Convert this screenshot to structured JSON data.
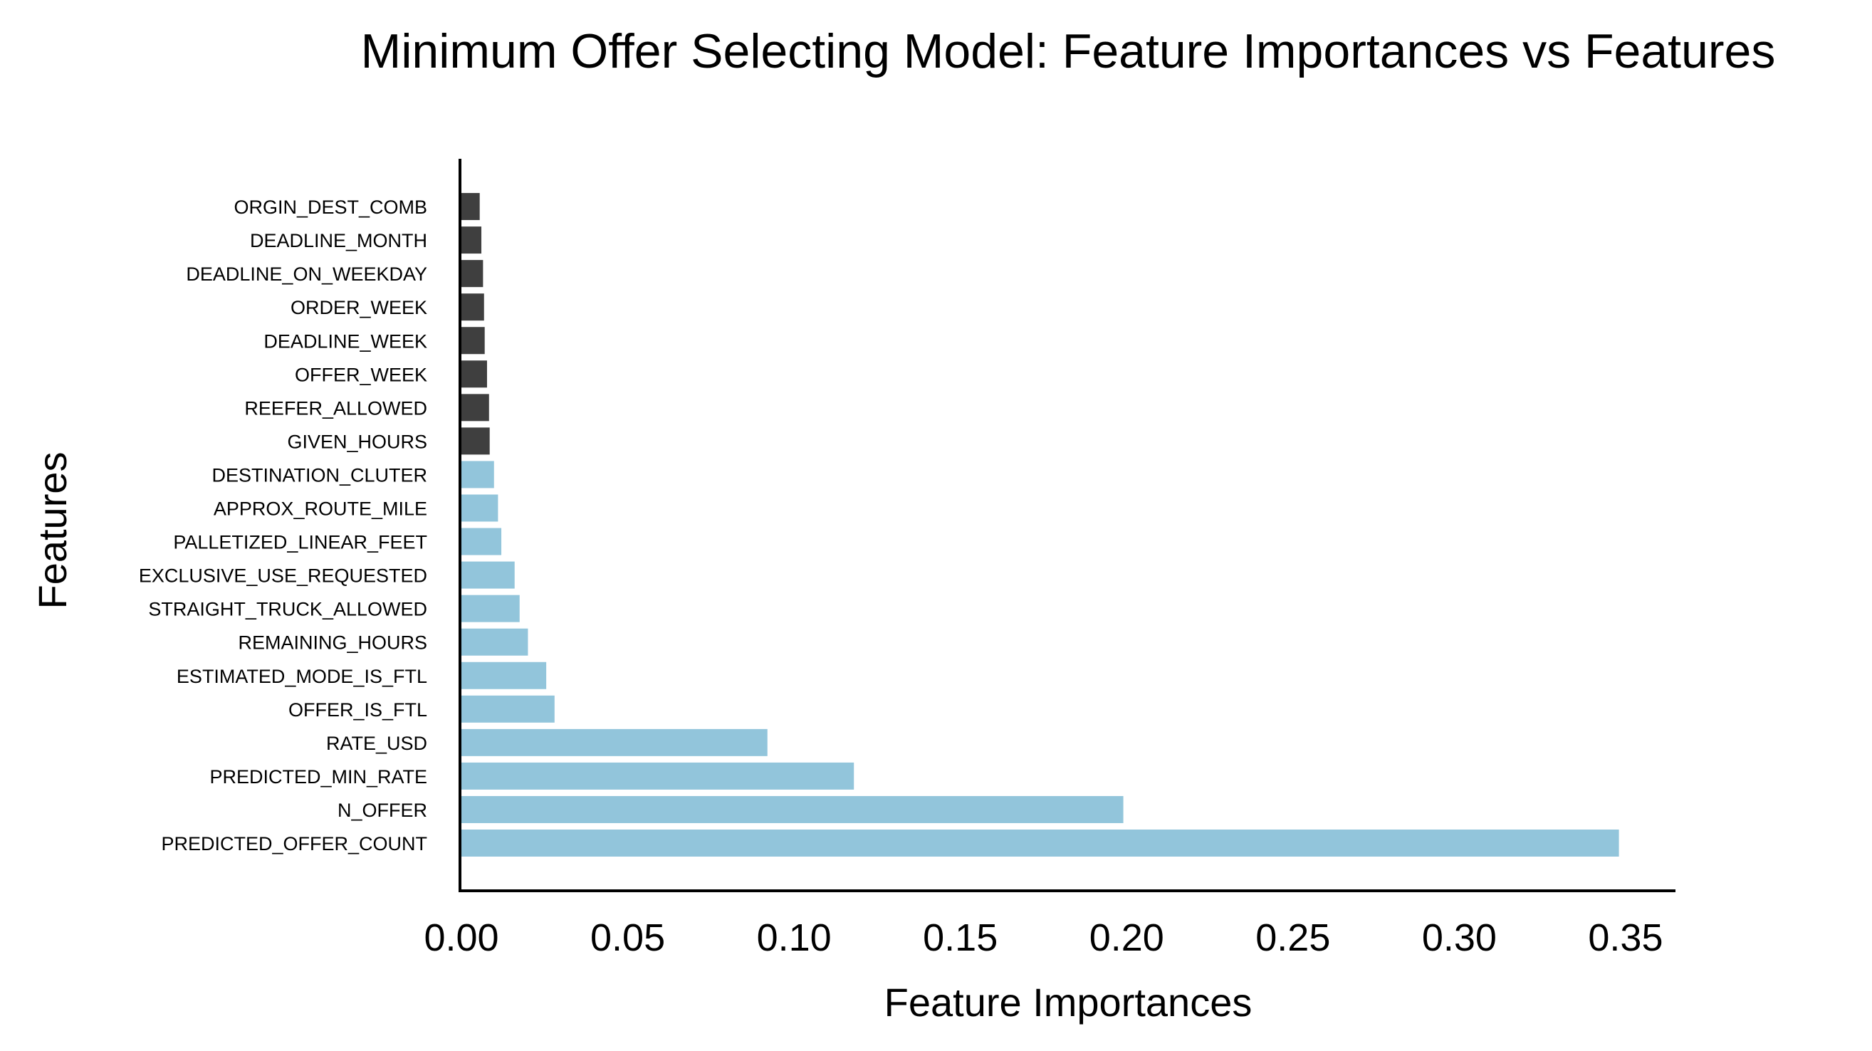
{
  "chart_data": {
    "type": "bar",
    "orientation": "horizontal",
    "title": "Minimum Offer Selecting Model: Feature Importances vs Features",
    "xlabel": "Feature Importances",
    "ylabel": "Features",
    "xlim": [
      0,
      0.365
    ],
    "xticks": [
      "0.00",
      "0.05",
      "0.10",
      "0.15",
      "0.20",
      "0.25",
      "0.30",
      "0.35"
    ],
    "grid": false,
    "colors": {
      "highlight": "#92c5db",
      "other": "#3f3f3f"
    },
    "categories": [
      "PREDICTED_OFFER_COUNT",
      "N_OFFER",
      "PREDICTED_MIN_RATE",
      "RATE_USD",
      "OFFER_IS_FTL",
      "ESTIMATED_MODE_IS_FTL",
      "REMAINING_HOURS",
      "STRAIGHT_TRUCK_ALLOWED",
      "EXCLUSIVE_USE_REQUESTED",
      "PALLETIZED_LINEAR_FEET",
      "APPROX_ROUTE_MILE",
      "DESTINATION_CLUTER",
      "GIVEN_HOURS",
      "REEFER_ALLOWED",
      "OFFER_WEEK",
      "DEADLINE_WEEK",
      "ORDER_WEEK",
      "DEADLINE_ON_WEEKDAY",
      "DEADLINE_MONTH",
      "ORGIN_DEST_COMB"
    ],
    "values": [
      0.348,
      0.199,
      0.118,
      0.092,
      0.028,
      0.0255,
      0.02,
      0.0175,
      0.016,
      0.012,
      0.011,
      0.0098,
      0.0085,
      0.0083,
      0.0077,
      0.007,
      0.0068,
      0.0065,
      0.006,
      0.0055
    ],
    "color_groups": [
      "highlight",
      "highlight",
      "highlight",
      "highlight",
      "highlight",
      "highlight",
      "highlight",
      "highlight",
      "highlight",
      "highlight",
      "highlight",
      "highlight",
      "other",
      "other",
      "other",
      "other",
      "other",
      "other",
      "other",
      "other"
    ]
  }
}
